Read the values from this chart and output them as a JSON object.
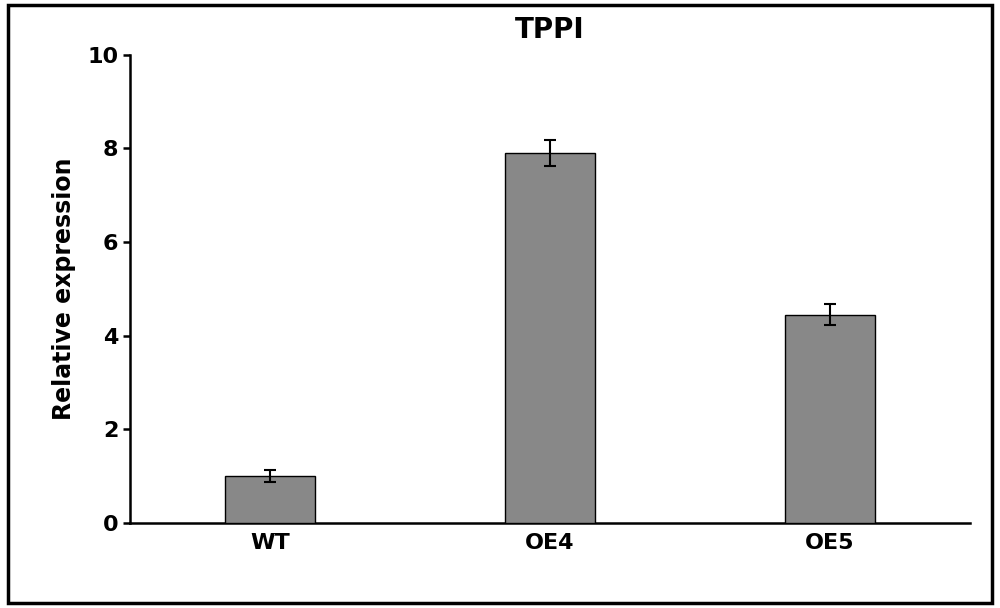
{
  "title": "TPPI",
  "categories": [
    "WT",
    "OE4",
    "OE5"
  ],
  "values": [
    1.0,
    7.9,
    4.45
  ],
  "errors": [
    0.12,
    0.28,
    0.22
  ],
  "bar_color": "#888888",
  "bar_edgecolor": "#000000",
  "ylabel": "Relative expression",
  "ylim": [
    0,
    10
  ],
  "yticks": [
    0,
    2,
    4,
    6,
    8,
    10
  ],
  "bar_width": 0.32,
  "title_fontsize": 20,
  "label_fontsize": 17,
  "tick_fontsize": 16,
  "background_color": "#ffffff",
  "figure_facecolor": "#ffffff",
  "spine_linewidth": 1.8,
  "error_capsize": 4,
  "error_linewidth": 1.5,
  "error_capthick": 1.5,
  "x_positions": [
    0.5,
    1.5,
    2.5
  ],
  "xlim": [
    0.0,
    3.0
  ]
}
